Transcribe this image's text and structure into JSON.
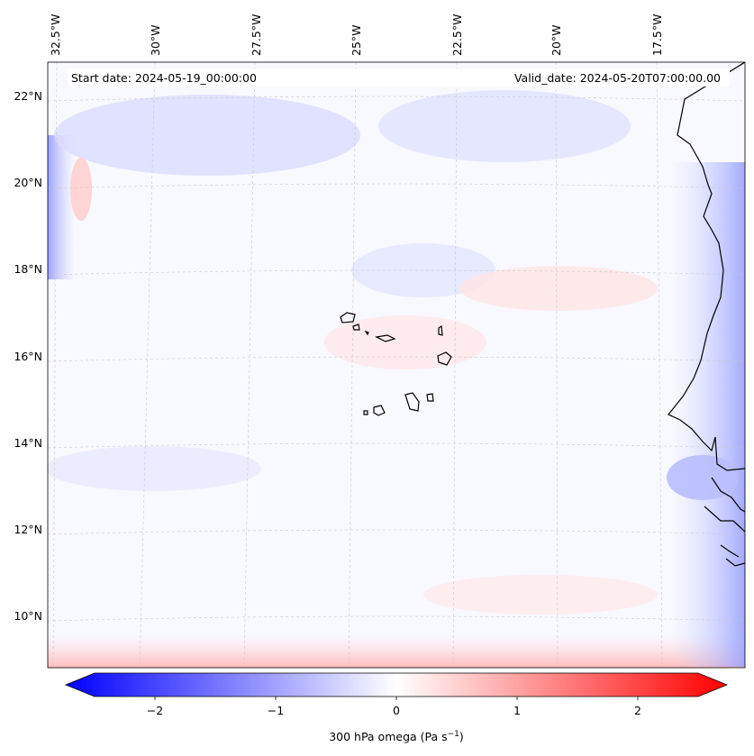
{
  "map": {
    "start_label": "Start date: 2024-05-19_00:00:00",
    "valid_label": "Valid_date: 2024-05-20T07:00:00.00",
    "lon_labels": [
      "32.5°W",
      "30°W",
      "27.5°W",
      "25°W",
      "22.5°W",
      "20°W",
      "17.5°W"
    ],
    "lat_labels": [
      "22°N",
      "20°N",
      "18°N",
      "16°N",
      "14°N",
      "12°N",
      "10°N"
    ],
    "field": "300 hPa omega",
    "background_color": "#f8f8ff",
    "coastline_color": "#000000"
  },
  "colorbar": {
    "label_prefix": "300 hPa omega (Pa s",
    "label_sup": "−1",
    "label_suffix": ")",
    "ticks": [
      "−2",
      "−1",
      "0",
      "1",
      "2"
    ],
    "tick_values": [
      -2,
      -1,
      0,
      1,
      2
    ],
    "range": [
      -2.5,
      2.5
    ],
    "min_color": "#0000ff",
    "mid_color": "#ffffff",
    "max_color": "#ff0000",
    "extend": "both"
  }
}
